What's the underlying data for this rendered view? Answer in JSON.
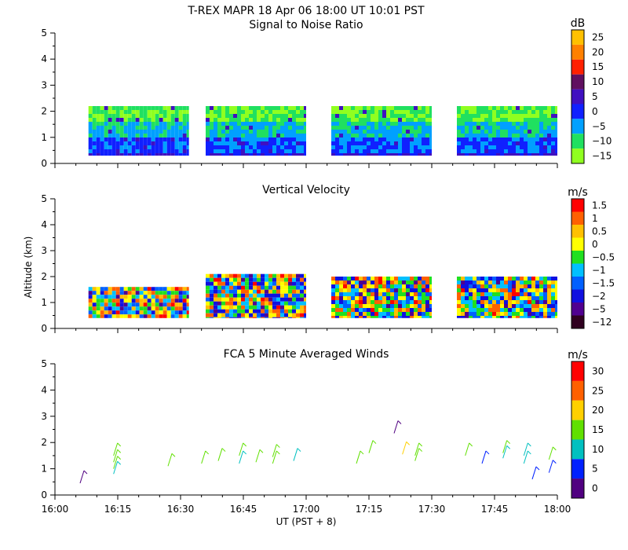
{
  "header": {
    "title": "T-REX   MAPR 18 Apr 06   18:00 UT   10:01   PST"
  },
  "x_axis": {
    "label": "UT  (PST + 8)",
    "range_minutes": [
      960,
      1080
    ],
    "ticks": [
      {
        "label": "16:00",
        "minute": 960
      },
      {
        "label": "16:15",
        "minute": 975
      },
      {
        "label": "16:30",
        "minute": 990
      },
      {
        "label": "16:45",
        "minute": 1005
      },
      {
        "label": "17:00",
        "minute": 1020
      },
      {
        "label": "17:15",
        "minute": 1035
      },
      {
        "label": "17:30",
        "minute": 1050
      },
      {
        "label": "17:45",
        "minute": 1065
      },
      {
        "label": "18:00",
        "minute": 1080
      }
    ]
  },
  "y_axis": {
    "label": "Altitude (km)",
    "range": [
      0,
      5
    ],
    "ticks": [
      "0",
      "1",
      "2",
      "3",
      "4",
      "5"
    ]
  },
  "chart_data": [
    {
      "type": "heatmap",
      "title": "Signal to Noise Ratio",
      "units": "dB",
      "ylabel": "Altitude (km)",
      "ylim": [
        0,
        5
      ],
      "colorbar": [
        {
          "label": "25",
          "color": "#ffc000"
        },
        {
          "label": "20",
          "color": "#ff8000"
        },
        {
          "label": "15",
          "color": "#ff2000"
        },
        {
          "label": "10",
          "color": "#601060"
        },
        {
          "label": "5",
          "color": "#4010c0"
        },
        {
          "label": "0",
          "color": "#1020ff"
        },
        {
          "label": "−5",
          "color": "#00a0ff"
        },
        {
          "label": "−10",
          "color": "#20e060"
        },
        {
          "label": "−15",
          "color": "#90ff20"
        }
      ],
      "data_segments": [
        {
          "start": 968,
          "end": 992,
          "top_km": 2.2,
          "bottom_km": 0.3
        },
        {
          "start": 996,
          "end": 1020,
          "top_km": 2.2,
          "bottom_km": 0.3
        },
        {
          "start": 1026,
          "end": 1050,
          "top_km": 2.2,
          "bottom_km": 0.3
        },
        {
          "start": 1056,
          "end": 1080,
          "top_km": 2.2,
          "bottom_km": 0.3
        }
      ]
    },
    {
      "type": "heatmap",
      "title": "Vertical Velocity",
      "units": "m/s",
      "ylabel": "Altitude (km)",
      "ylim": [
        0,
        5
      ],
      "colorbar": [
        {
          "label": "1.5",
          "color": "#ff0000"
        },
        {
          "label": "1",
          "color": "#ff6000"
        },
        {
          "label": "0.5",
          "color": "#ffc000"
        },
        {
          "label": "0",
          "color": "#ffff00"
        },
        {
          "label": "−0.5",
          "color": "#20e020"
        },
        {
          "label": "−1",
          "color": "#00c0ff"
        },
        {
          "label": "−1.5",
          "color": "#0060ff"
        },
        {
          "label": "−2",
          "color": "#1010e0"
        },
        {
          "label": "−5",
          "color": "#500090"
        },
        {
          "label": "−12",
          "color": "#300020"
        }
      ],
      "data_segments": [
        {
          "start": 968,
          "end": 992,
          "top_km": 1.6,
          "bottom_km": 0.4
        },
        {
          "start": 996,
          "end": 1020,
          "top_km": 2.1,
          "bottom_km": 0.4
        },
        {
          "start": 1026,
          "end": 1050,
          "top_km": 2.0,
          "bottom_km": 0.4
        },
        {
          "start": 1056,
          "end": 1080,
          "top_km": 2.0,
          "bottom_km": 0.4
        }
      ]
    },
    {
      "type": "scatter",
      "title": "FCA 5 Minute Averaged Winds",
      "units": "m/s",
      "ylabel": "Altitude (km)",
      "ylim": [
        0,
        5
      ],
      "colorbar": [
        {
          "label": "30",
          "color": "#ff0000"
        },
        {
          "label": "25",
          "color": "#ff6000"
        },
        {
          "label": "20",
          "color": "#ffd000"
        },
        {
          "label": "15",
          "color": "#60e000"
        },
        {
          "label": "10",
          "color": "#00c0c0"
        },
        {
          "label": "5",
          "color": "#0020ff"
        },
        {
          "label": "0",
          "color": "#500080"
        }
      ],
      "barbs": [
        {
          "t": 966,
          "alt": 0.45,
          "speed": 2
        },
        {
          "t": 974,
          "alt": 0.8,
          "speed": 12
        },
        {
          "t": 974,
          "alt": 1.0,
          "speed": 13
        },
        {
          "t": 974,
          "alt": 1.25,
          "speed": 14
        },
        {
          "t": 974,
          "alt": 1.5,
          "speed": 15
        },
        {
          "t": 987,
          "alt": 1.1,
          "speed": 17
        },
        {
          "t": 995,
          "alt": 1.2,
          "speed": 16
        },
        {
          "t": 999,
          "alt": 1.3,
          "speed": 15
        },
        {
          "t": 1004,
          "alt": 1.2,
          "speed": 11
        },
        {
          "t": 1004,
          "alt": 1.5,
          "speed": 14
        },
        {
          "t": 1008,
          "alt": 1.25,
          "speed": 13
        },
        {
          "t": 1012,
          "alt": 1.2,
          "speed": 14
        },
        {
          "t": 1012,
          "alt": 1.45,
          "speed": 15
        },
        {
          "t": 1017,
          "alt": 1.3,
          "speed": 10
        },
        {
          "t": 1032,
          "alt": 1.2,
          "speed": 14
        },
        {
          "t": 1035,
          "alt": 1.6,
          "speed": 13
        },
        {
          "t": 1041,
          "alt": 2.35,
          "speed": 2
        },
        {
          "t": 1043,
          "alt": 1.55,
          "speed": 19
        },
        {
          "t": 1046,
          "alt": 1.3,
          "speed": 17
        },
        {
          "t": 1046,
          "alt": 1.5,
          "speed": 16
        },
        {
          "t": 1058,
          "alt": 1.5,
          "speed": 13
        },
        {
          "t": 1062,
          "alt": 1.2,
          "speed": 5
        },
        {
          "t": 1067,
          "alt": 1.4,
          "speed": 12
        },
        {
          "t": 1067,
          "alt": 1.6,
          "speed": 13
        },
        {
          "t": 1072,
          "alt": 1.2,
          "speed": 11
        },
        {
          "t": 1072,
          "alt": 1.5,
          "speed": 12
        },
        {
          "t": 1074,
          "alt": 0.6,
          "speed": 4
        },
        {
          "t": 1078,
          "alt": 0.85,
          "speed": 6
        },
        {
          "t": 1078,
          "alt": 1.35,
          "speed": 14
        }
      ]
    }
  ]
}
